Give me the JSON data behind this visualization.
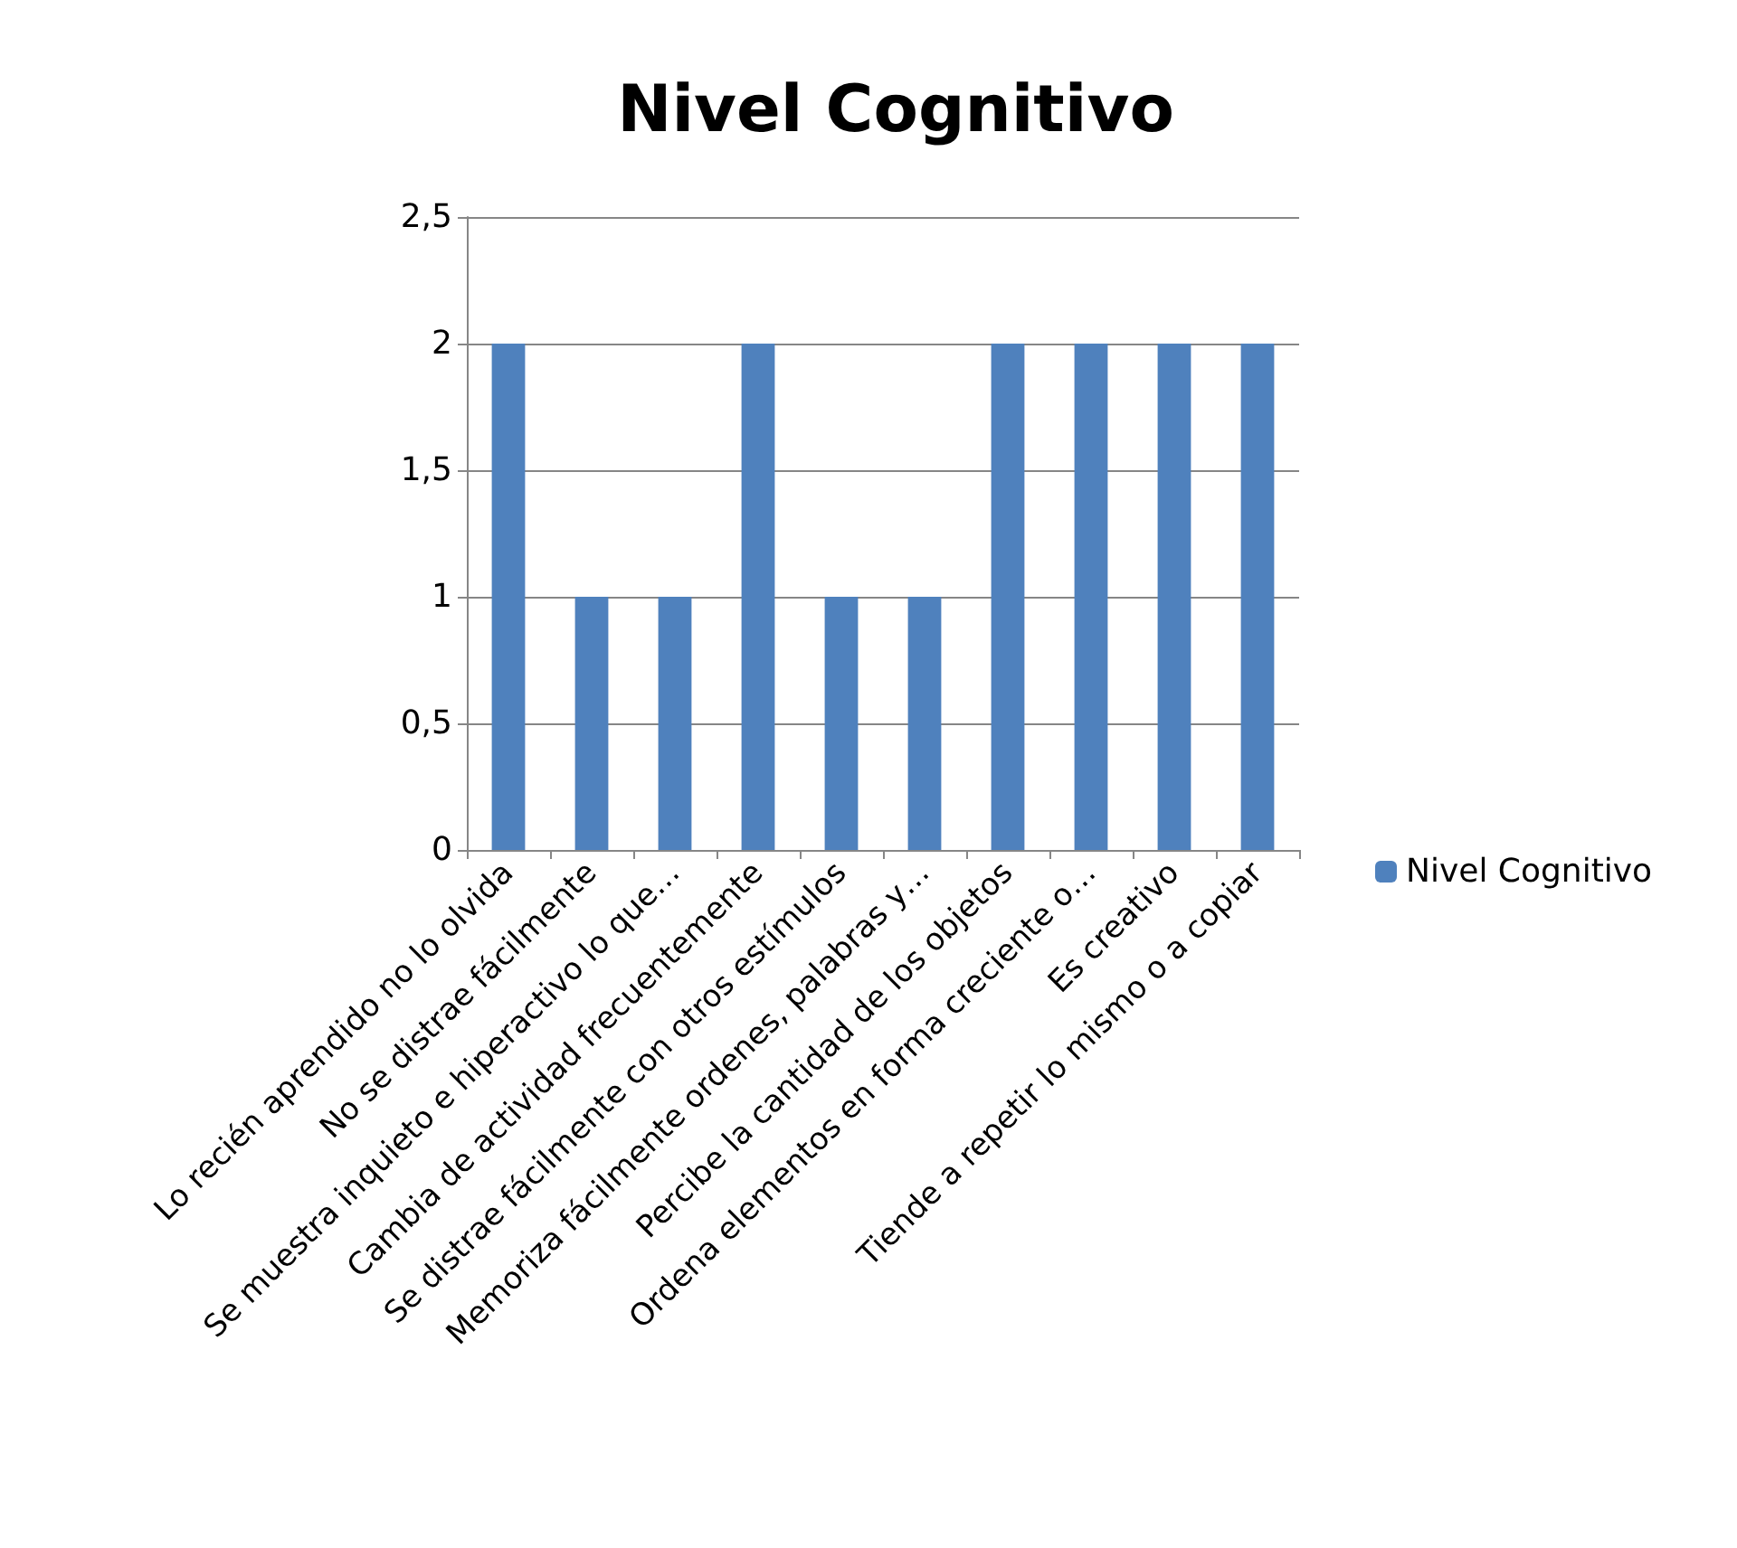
{
  "chart_data": {
    "type": "bar",
    "title": "Nivel Cognitivo",
    "categories": [
      "Lo recién aprendido no lo olvida",
      "No se distrae fácilmente",
      "Se muestra inquieto e hiperactivo lo que…",
      "Cambia de actividad frecuentemente",
      "Se distrae fácilmente con otros estímulos",
      "Memoriza fácilmente ordenes, palabras y…",
      "Percibe la cantidad de los objetos",
      "Ordena elementos en forma creciente o…",
      "Es creativo",
      "Tiende a repetir lo mismo o a copiar"
    ],
    "series": [
      {
        "name": "Nivel Cognitivo",
        "color": "#4f81bd",
        "values": [
          2,
          1,
          1,
          2,
          1,
          1,
          2,
          2,
          2,
          2
        ]
      }
    ],
    "ylim": [
      0,
      2.5
    ],
    "yticks": [
      0,
      {
        "value": 0.5,
        "label": "0,5"
      },
      1,
      {
        "value": 1.5,
        "label": "1,5"
      },
      2,
      {
        "value": 2.5,
        "label": "2,5"
      }
    ],
    "grid": "y",
    "legend": "right"
  }
}
